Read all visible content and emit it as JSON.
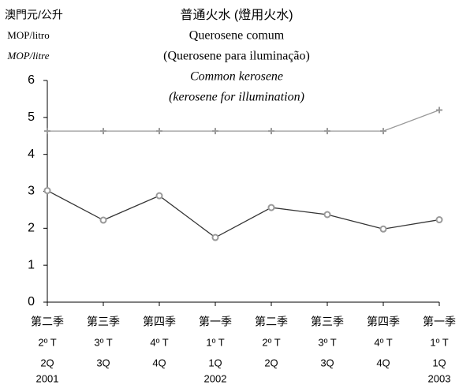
{
  "chart_data": {
    "type": "line",
    "title": "普通火水 (燈用火水)",
    "subtitle": [
      "Querosene comum",
      "(Querosene para iluminação)",
      "Common kerosene",
      "(kerosene for illumination)"
    ],
    "y_label": [
      "澳門元/公升",
      "MOP/litro",
      "MOP/litre"
    ],
    "categories": [
      [
        "第二季",
        "2º T",
        "2Q"
      ],
      [
        "第三季",
        "3º T",
        "3Q"
      ],
      [
        "第四季",
        "4º T",
        "4Q"
      ],
      [
        "第一季",
        "1º T",
        "1Q"
      ],
      [
        "第二季",
        "2º T",
        "2Q"
      ],
      [
        "第三季",
        "3º T",
        "3Q"
      ],
      [
        "第四季",
        "4º T",
        "4Q"
      ],
      [
        "第一季",
        "1º T",
        "1Q"
      ]
    ],
    "years": [
      "2001",
      null,
      null,
      "2002",
      null,
      null,
      null,
      "2003"
    ],
    "ylim": [
      0,
      6
    ],
    "yticks": [
      0,
      1,
      2,
      3,
      4,
      5,
      6
    ],
    "series": [
      {
        "color": "#999999",
        "marker": "plus",
        "marker_color": "#999999",
        "values": [
          4.63,
          4.63,
          4.63,
          4.63,
          4.63,
          4.63,
          4.63,
          5.2
        ]
      },
      {
        "color": "#333333",
        "marker": "circle",
        "marker_color": "#999999",
        "values": [
          3.02,
          2.22,
          2.88,
          1.75,
          2.56,
          2.37,
          1.98,
          2.23
        ]
      }
    ]
  }
}
